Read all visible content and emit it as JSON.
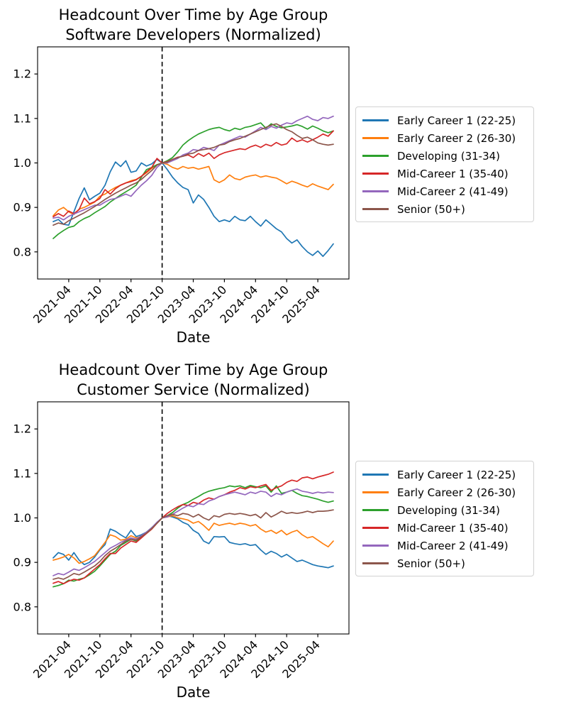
{
  "figure": {
    "background": "#ffffff",
    "text_color": "#000000",
    "event_line_style": "dashed-black-vertical"
  },
  "chart_data": [
    {
      "type": "line",
      "title_line1": "Headcount Over Time by Age Group",
      "title_line2": "Software Developers (Normalized)",
      "xlabel": "Date",
      "x_start": "2021-01",
      "x_step_months": 1,
      "n_points": 55,
      "x_tick_labels": [
        "2021-04",
        "2021-10",
        "2022-04",
        "2022-10",
        "2023-04",
        "2023-10",
        "2024-04",
        "2024-10",
        "2025-04"
      ],
      "y_ticks": [
        0.8,
        0.9,
        1.0,
        1.1,
        1.2
      ],
      "ylim": [
        0.739,
        1.261
      ],
      "vline_month": "2022-10",
      "grid": false,
      "legend_position": "right-outside",
      "series": [
        {
          "name": "Early Career 1 (22-25)",
          "color": "#1f77b4",
          "values": [
            0.868,
            0.873,
            0.862,
            0.86,
            0.89,
            0.92,
            0.944,
            0.917,
            0.925,
            0.932,
            0.95,
            0.98,
            1.002,
            0.992,
            1.005,
            0.979,
            0.982,
            1.0,
            0.993,
            0.998,
            1.008,
            1.0,
            0.985,
            0.968,
            0.955,
            0.945,
            0.94,
            0.91,
            0.928,
            0.918,
            0.9,
            0.88,
            0.868,
            0.872,
            0.868,
            0.88,
            0.872,
            0.87,
            0.88,
            0.868,
            0.858,
            0.872,
            0.862,
            0.852,
            0.845,
            0.83,
            0.82,
            0.827,
            0.812,
            0.8,
            0.792,
            0.802,
            0.79,
            0.803,
            0.818
          ]
        },
        {
          "name": "Early Career 2 (26-30)",
          "color": "#ff7f0e",
          "values": [
            0.881,
            0.894,
            0.9,
            0.89,
            0.884,
            0.896,
            0.9,
            0.906,
            0.912,
            0.925,
            0.93,
            0.938,
            0.945,
            0.95,
            0.955,
            0.96,
            0.963,
            0.97,
            0.978,
            0.988,
            0.996,
            1.0,
            0.997,
            0.99,
            0.986,
            0.992,
            0.988,
            0.99,
            0.986,
            0.989,
            0.992,
            0.962,
            0.956,
            0.962,
            0.973,
            0.965,
            0.962,
            0.968,
            0.971,
            0.973,
            0.968,
            0.971,
            0.968,
            0.966,
            0.96,
            0.953,
            0.959,
            0.955,
            0.95,
            0.946,
            0.953,
            0.948,
            0.944,
            0.94,
            0.952
          ]
        },
        {
          "name": "Developing (31-34)",
          "color": "#2ca02c",
          "values": [
            0.83,
            0.84,
            0.848,
            0.855,
            0.858,
            0.868,
            0.875,
            0.88,
            0.888,
            0.895,
            0.902,
            0.912,
            0.92,
            0.928,
            0.935,
            0.942,
            0.95,
            0.968,
            0.985,
            0.99,
            0.996,
            1.0,
            1.005,
            1.012,
            1.025,
            1.04,
            1.05,
            1.058,
            1.065,
            1.07,
            1.075,
            1.078,
            1.08,
            1.075,
            1.072,
            1.078,
            1.075,
            1.08,
            1.082,
            1.086,
            1.09,
            1.078,
            1.088,
            1.082,
            1.079,
            1.081,
            1.083,
            1.086,
            1.082,
            1.076,
            1.083,
            1.078,
            1.072,
            1.068,
            1.072
          ]
        },
        {
          "name": "Mid-Career 1 (35-40)",
          "color": "#d62728",
          "values": [
            0.879,
            0.886,
            0.88,
            0.892,
            0.886,
            0.895,
            0.921,
            0.908,
            0.913,
            0.92,
            0.94,
            0.93,
            0.942,
            0.95,
            0.955,
            0.958,
            0.962,
            0.97,
            0.98,
            0.99,
            1.01,
            1.0,
            1.003,
            1.008,
            1.013,
            1.015,
            1.018,
            1.012,
            1.021,
            1.015,
            1.022,
            1.01,
            1.018,
            1.023,
            1.026,
            1.029,
            1.032,
            1.03,
            1.036,
            1.04,
            1.035,
            1.042,
            1.038,
            1.046,
            1.04,
            1.043,
            1.056,
            1.048,
            1.052,
            1.047,
            1.052,
            1.058,
            1.065,
            1.06,
            1.072
          ]
        },
        {
          "name": "Mid-Career 2 (41-49)",
          "color": "#9467bd",
          "values": [
            0.876,
            0.878,
            0.872,
            0.88,
            0.885,
            0.89,
            0.895,
            0.9,
            0.905,
            0.905,
            0.912,
            0.918,
            0.92,
            0.925,
            0.93,
            0.925,
            0.938,
            0.95,
            0.96,
            0.972,
            0.99,
            1.0,
            1.0,
            1.005,
            1.01,
            1.018,
            1.022,
            1.03,
            1.028,
            1.035,
            1.032,
            1.028,
            1.04,
            1.045,
            1.05,
            1.055,
            1.06,
            1.058,
            1.065,
            1.072,
            1.08,
            1.075,
            1.082,
            1.078,
            1.085,
            1.09,
            1.088,
            1.095,
            1.1,
            1.105,
            1.098,
            1.095,
            1.102,
            1.1,
            1.105
          ]
        },
        {
          "name": "Senior (50+)",
          "color": "#8c564b",
          "values": [
            0.86,
            0.865,
            0.862,
            0.87,
            0.876,
            0.882,
            0.888,
            0.895,
            0.902,
            0.91,
            0.918,
            0.925,
            0.932,
            0.938,
            0.944,
            0.95,
            0.955,
            0.963,
            0.973,
            0.983,
            0.995,
            1.0,
            1.002,
            1.008,
            1.012,
            1.015,
            1.02,
            1.022,
            1.028,
            1.03,
            1.032,
            1.035,
            1.04,
            1.042,
            1.048,
            1.052,
            1.055,
            1.06,
            1.065,
            1.07,
            1.075,
            1.08,
            1.085,
            1.088,
            1.082,
            1.075,
            1.07,
            1.062,
            1.055,
            1.058,
            1.052,
            1.045,
            1.042,
            1.04,
            1.042
          ]
        }
      ]
    },
    {
      "type": "line",
      "title_line1": "Headcount Over Time by Age Group",
      "title_line2": "Customer Service (Normalized)",
      "xlabel": "Date",
      "x_start": "2021-01",
      "x_step_months": 1,
      "n_points": 55,
      "x_tick_labels": [
        "2021-04",
        "2021-10",
        "2022-04",
        "2022-10",
        "2023-04",
        "2023-10",
        "2024-04",
        "2024-10",
        "2025-04"
      ],
      "y_ticks": [
        0.8,
        0.9,
        1.0,
        1.1,
        1.2
      ],
      "ylim": [
        0.739,
        1.261
      ],
      "vline_month": "2022-10",
      "grid": false,
      "legend_position": "right-outside",
      "series": [
        {
          "name": "Early Career 1 (22-25)",
          "color": "#1f77b4",
          "values": [
            0.91,
            0.922,
            0.918,
            0.905,
            0.922,
            0.905,
            0.895,
            0.9,
            0.912,
            0.928,
            0.94,
            0.975,
            0.97,
            0.962,
            0.955,
            0.972,
            0.958,
            0.962,
            0.968,
            0.978,
            0.99,
            1.0,
            1.005,
            1.002,
            0.998,
            0.99,
            0.985,
            0.972,
            0.965,
            0.948,
            0.942,
            0.958,
            0.957,
            0.958,
            0.945,
            0.942,
            0.94,
            0.942,
            0.938,
            0.94,
            0.928,
            0.918,
            0.925,
            0.92,
            0.912,
            0.918,
            0.91,
            0.902,
            0.905,
            0.9,
            0.895,
            0.892,
            0.89,
            0.888,
            0.892
          ]
        },
        {
          "name": "Early Career 2 (26-30)",
          "color": "#ff7f0e",
          "values": [
            0.905,
            0.908,
            0.912,
            0.918,
            0.91,
            0.898,
            0.902,
            0.908,
            0.915,
            0.93,
            0.945,
            0.962,
            0.958,
            0.95,
            0.952,
            0.96,
            0.955,
            0.958,
            0.965,
            0.975,
            0.988,
            1.0,
            1.002,
            1.005,
            1.0,
            0.998,
            0.995,
            0.988,
            0.992,
            0.983,
            0.972,
            0.988,
            0.983,
            0.986,
            0.988,
            0.985,
            0.988,
            0.986,
            0.982,
            0.985,
            0.975,
            0.968,
            0.972,
            0.965,
            0.972,
            0.962,
            0.968,
            0.972,
            0.962,
            0.955,
            0.958,
            0.95,
            0.942,
            0.935,
            0.948
          ]
        },
        {
          "name": "Developing (31-34)",
          "color": "#2ca02c",
          "values": [
            0.845,
            0.848,
            0.852,
            0.86,
            0.858,
            0.862,
            0.865,
            0.872,
            0.88,
            0.892,
            0.905,
            0.918,
            0.925,
            0.938,
            0.945,
            0.952,
            0.948,
            0.958,
            0.968,
            0.978,
            0.988,
            1.0,
            1.005,
            1.012,
            1.022,
            1.03,
            1.035,
            1.042,
            1.048,
            1.055,
            1.06,
            1.063,
            1.066,
            1.068,
            1.072,
            1.07,
            1.072,
            1.068,
            1.073,
            1.07,
            1.068,
            1.072,
            1.058,
            1.072,
            1.055,
            1.058,
            1.062,
            1.055,
            1.05,
            1.048,
            1.045,
            1.042,
            1.038,
            1.035,
            1.038
          ]
        },
        {
          "name": "Mid-Career 1 (35-40)",
          "color": "#d62728",
          "values": [
            0.853,
            0.857,
            0.852,
            0.858,
            0.862,
            0.86,
            0.865,
            0.875,
            0.885,
            0.895,
            0.908,
            0.92,
            0.92,
            0.932,
            0.94,
            0.948,
            0.945,
            0.955,
            0.965,
            0.975,
            0.988,
            1.0,
            1.01,
            1.018,
            1.025,
            1.03,
            1.028,
            1.035,
            1.032,
            1.04,
            1.045,
            1.042,
            1.048,
            1.052,
            1.058,
            1.062,
            1.068,
            1.065,
            1.07,
            1.068,
            1.072,
            1.075,
            1.062,
            1.068,
            1.072,
            1.08,
            1.085,
            1.082,
            1.09,
            1.092,
            1.088,
            1.092,
            1.095,
            1.098,
            1.103
          ]
        },
        {
          "name": "Mid-Career 2 (41-49)",
          "color": "#9467bd",
          "values": [
            0.87,
            0.875,
            0.872,
            0.878,
            0.885,
            0.882,
            0.888,
            0.895,
            0.902,
            0.912,
            0.922,
            0.932,
            0.938,
            0.945,
            0.95,
            0.955,
            0.952,
            0.96,
            0.968,
            0.978,
            0.99,
            1.0,
            1.002,
            1.008,
            1.015,
            1.022,
            1.028,
            1.025,
            1.032,
            1.03,
            1.038,
            1.042,
            1.048,
            1.052,
            1.055,
            1.058,
            1.055,
            1.052,
            1.058,
            1.055,
            1.06,
            1.058,
            1.048,
            1.055,
            1.052,
            1.058,
            1.062,
            1.065,
            1.06,
            1.058,
            1.055,
            1.058,
            1.056,
            1.058,
            1.057
          ]
        },
        {
          "name": "Senior (50+)",
          "color": "#8c564b",
          "values": [
            0.862,
            0.865,
            0.862,
            0.868,
            0.875,
            0.872,
            0.878,
            0.885,
            0.892,
            0.902,
            0.915,
            0.925,
            0.932,
            0.94,
            0.948,
            0.952,
            0.95,
            0.958,
            0.966,
            0.976,
            0.988,
            1.0,
            1.005,
            1.008,
            1.005,
            1.01,
            1.008,
            1.002,
            1.008,
            1.0,
            0.995,
            1.005,
            1.002,
            1.008,
            1.01,
            1.008,
            1.01,
            1.008,
            1.005,
            1.008,
            1.0,
            1.012,
            1.002,
            1.008,
            1.015,
            1.01,
            1.012,
            1.01,
            1.012,
            1.015,
            1.012,
            1.015,
            1.015,
            1.016,
            1.018
          ]
        }
      ]
    }
  ]
}
